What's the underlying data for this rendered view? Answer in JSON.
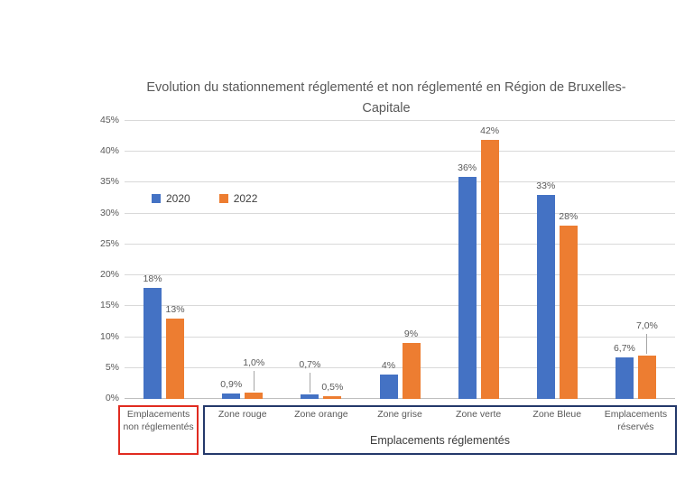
{
  "chart_data": {
    "type": "bar",
    "title": "Evolution du stationnement réglementé et non réglementé en Région de Bruxelles-Capitale",
    "categories": [
      "Emplacements non réglementés",
      "Zone rouge",
      "Zone orange",
      "Zone grise",
      "Zone verte",
      "Zone Bleue",
      "Emplacements réservés"
    ],
    "series": [
      {
        "name": "2020",
        "color": "#4472C4",
        "values": [
          18,
          0.9,
          0.7,
          4,
          36,
          33,
          6.7
        ],
        "labels": [
          "18%",
          "0,9%",
          "0,7%",
          "4%",
          "36%",
          "33%",
          "6,7%"
        ],
        "label_raised": [
          false,
          false,
          true,
          false,
          false,
          false,
          false
        ]
      },
      {
        "name": "2022",
        "color": "#ED7D31",
        "values": [
          13,
          1.0,
          0.5,
          9,
          42,
          28,
          7.0
        ],
        "labels": [
          "13%",
          "1,0%",
          "0,5%",
          "9%",
          "42%",
          "28%",
          "7,0%"
        ],
        "label_raised": [
          false,
          true,
          false,
          false,
          false,
          false,
          true
        ]
      }
    ],
    "ylim": [
      0,
      45
    ],
    "yticks": [
      "0%",
      "5%",
      "10%",
      "15%",
      "20%",
      "25%",
      "30%",
      "35%",
      "40%",
      "45%"
    ],
    "grid": true,
    "legend_position": "inside-top-left"
  },
  "footer": {
    "unregulated": {
      "label": "Emplacements non réglementés",
      "border_color": "#E02B20"
    },
    "regulated": {
      "label": "Emplacements réglementés",
      "border_color": "#24396B"
    }
  },
  "colors": {
    "bar_2020": "#4472C4",
    "bar_2022": "#ED7D31",
    "gridline": "#D9D9D9",
    "axis_line": "#BFBFBF",
    "text": "#595959",
    "title": "#595959",
    "leader_line": "#A6A6A6",
    "background": "#FFFFFF"
  }
}
